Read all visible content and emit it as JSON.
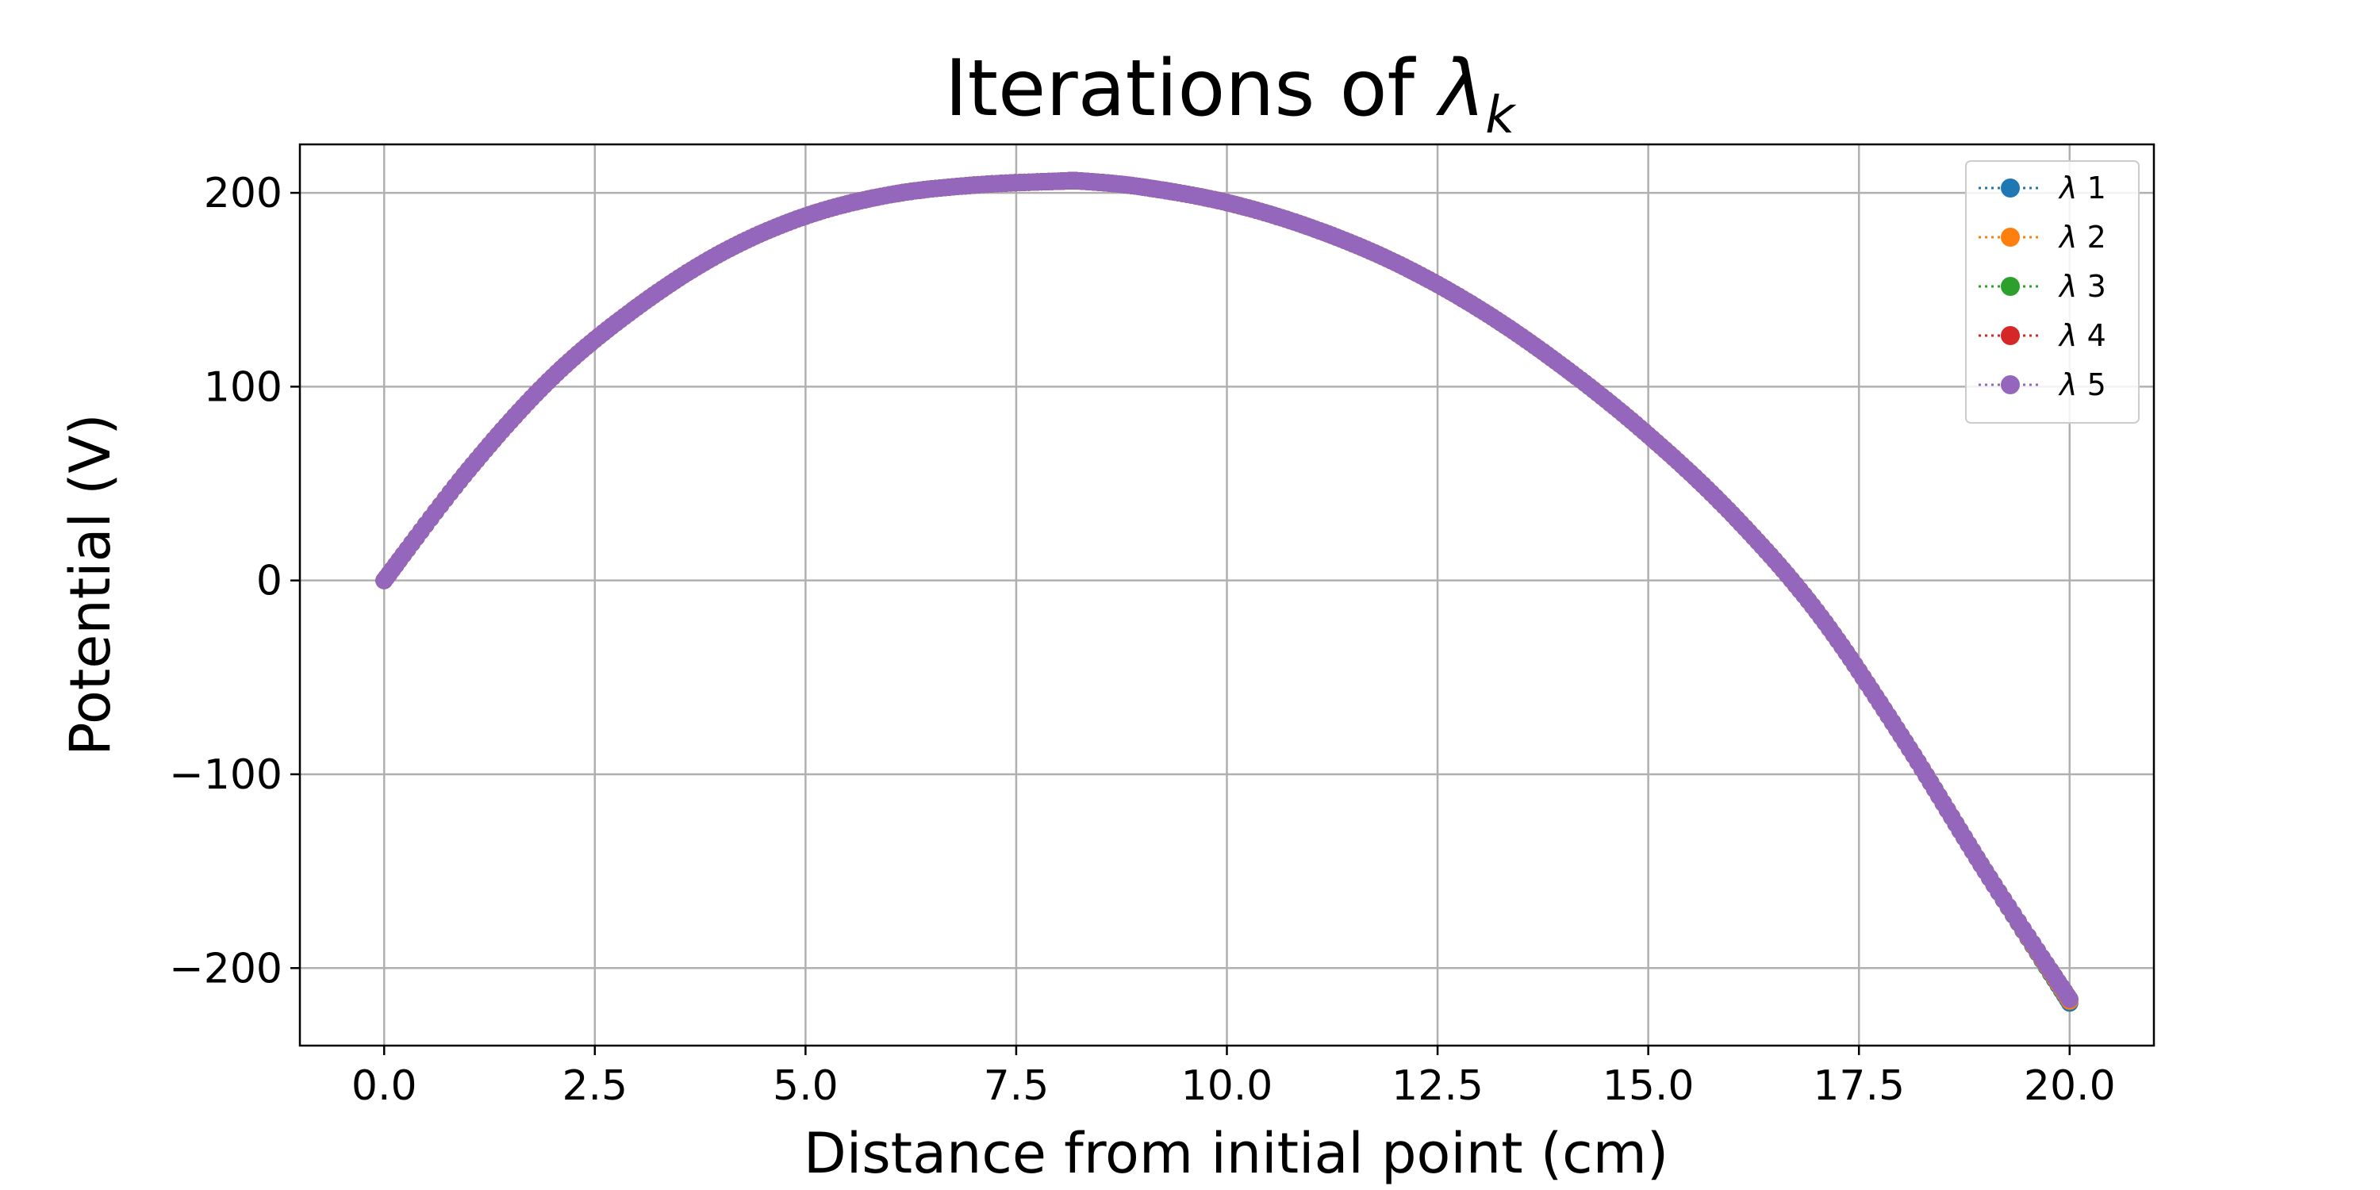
{
  "chart_data": {
    "type": "line",
    "title_text": "Iterations of ",
    "title_symbol": "λ",
    "title_subscript": "k",
    "xlabel": "Distance from initial point (cm)",
    "ylabel": "Potential (V)",
    "xlim": [
      -1.0,
      21.0
    ],
    "ylim": [
      -240,
      225
    ],
    "xticks": [
      0.0,
      2.5,
      5.0,
      7.5,
      10.0,
      12.5,
      15.0,
      17.5,
      20.0
    ],
    "xtick_labels": [
      "0.0",
      "2.5",
      "5.0",
      "7.5",
      "10.0",
      "12.5",
      "15.0",
      "17.5",
      "20.0"
    ],
    "yticks": [
      -200,
      -100,
      0,
      100,
      200
    ],
    "ytick_labels": [
      "−200",
      "−100",
      "0",
      "100",
      "200"
    ],
    "grid": true,
    "legend_position": "top-right",
    "x": [
      0.0,
      1.0,
      2.0,
      3.0,
      4.0,
      5.0,
      6.0,
      7.0,
      8.0,
      8.3,
      9.0,
      10.0,
      11.0,
      12.0,
      13.0,
      14.0,
      15.0,
      16.0,
      17.0,
      18.0,
      19.0,
      20.0
    ],
    "series": [
      {
        "name": "λ 1",
        "color": "#1f77b4",
        "values": [
          0,
          57,
          105,
          141,
          169,
          188,
          199,
          204,
          206,
          206,
          203,
          195,
          182,
          164,
          140,
          110,
          75,
          34,
          -16,
          -80,
          -150,
          -218
        ]
      },
      {
        "name": "λ 2",
        "color": "#ff7f0e",
        "values": [
          0,
          57,
          105,
          141,
          169,
          188,
          199,
          204,
          206,
          206,
          203,
          195,
          182,
          164,
          140,
          110,
          75,
          34,
          -16,
          -80,
          -150,
          -217
        ]
      },
      {
        "name": "λ 3",
        "color": "#2ca02c",
        "values": [
          0,
          57,
          105,
          141,
          169,
          188,
          199,
          204,
          206,
          206,
          203,
          195,
          182,
          164,
          140,
          110,
          75,
          34,
          -16,
          -80,
          -150,
          -216
        ]
      },
      {
        "name": "λ 4",
        "color": "#d62728",
        "values": [
          0,
          57,
          105,
          141,
          169,
          188,
          199,
          204,
          206,
          206,
          203,
          195,
          182,
          164,
          140,
          110,
          75,
          34,
          -16,
          -80,
          -150,
          -216
        ]
      },
      {
        "name": "λ 5",
        "color": "#9467bd",
        "values": [
          0,
          57,
          105,
          141,
          169,
          188,
          199,
          204,
          206,
          206,
          203,
          195,
          182,
          164,
          140,
          110,
          75,
          34,
          -16,
          -80,
          -150,
          -216
        ]
      }
    ]
  }
}
